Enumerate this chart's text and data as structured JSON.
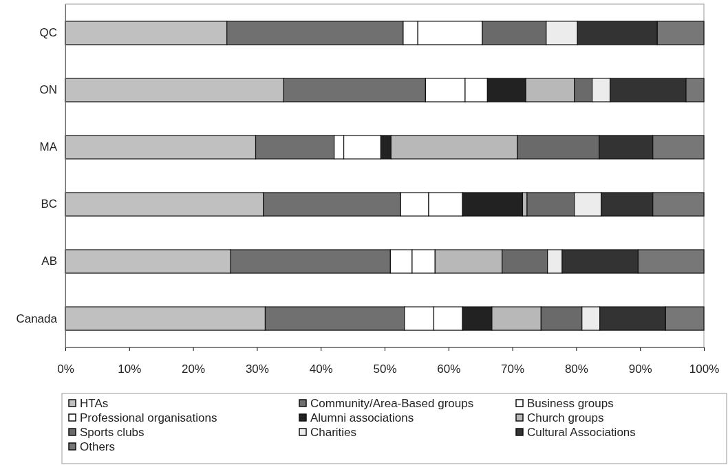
{
  "chart_data": {
    "type": "bar",
    "orientation": "horizontal",
    "stacked": true,
    "legend": "bottom",
    "grid": false,
    "categories": [
      "QC",
      "ON",
      "MA",
      "BC",
      "AB",
      "Canada"
    ],
    "xlim": [
      0,
      100
    ],
    "xticks": [
      {
        "value": 0,
        "label": "0%"
      },
      {
        "value": 10,
        "label": "10%"
      },
      {
        "value": 20,
        "label": "20%"
      },
      {
        "value": 30,
        "label": "30%"
      },
      {
        "value": 40,
        "label": "40%"
      },
      {
        "value": 50,
        "label": "50%"
      },
      {
        "value": 60,
        "label": "60%"
      },
      {
        "value": 70,
        "label": "70%"
      },
      {
        "value": 80,
        "label": "80%"
      },
      {
        "value": 90,
        "label": "90%"
      },
      {
        "value": 100,
        "label": "100%"
      }
    ],
    "series": [
      {
        "name": "HTAs",
        "color": "#c0c0c0",
        "values": [
          25.3,
          34.2,
          29.8,
          31.0,
          25.9,
          31.3
        ]
      },
      {
        "name": "Community/Area-Based groups",
        "color": "#707070",
        "values": [
          27.6,
          22.2,
          12.3,
          21.5,
          25.0,
          21.8
        ]
      },
      {
        "name": "Business groups",
        "color": "#ffffff",
        "values": [
          2.3,
          6.2,
          1.5,
          4.4,
          3.4,
          4.6
        ]
      },
      {
        "name": "Professional organisations",
        "color": "#ffffff",
        "values": [
          10.1,
          3.5,
          5.8,
          5.3,
          3.6,
          4.5
        ]
      },
      {
        "name": "Alumni associations",
        "color": "#222222",
        "values": [
          0,
          6.0,
          1.6,
          9.4,
          0,
          4.6
        ]
      },
      {
        "name": "Church groups",
        "color": "#b8b8b8",
        "values": [
          0,
          7.6,
          19.8,
          0.7,
          10.5,
          7.7
        ]
      },
      {
        "name": "Sports clubs",
        "color": "#6a6a6a",
        "values": [
          10.0,
          2.8,
          12.8,
          7.4,
          7.1,
          6.4
        ]
      },
      {
        "name": "Charities",
        "color": "#ececec",
        "values": [
          4.9,
          2.8,
          0,
          4.2,
          2.3,
          2.8
        ]
      },
      {
        "name": "Cultural Associations",
        "color": "#333333",
        "values": [
          12.5,
          11.9,
          8.4,
          8.1,
          11.9,
          10.3
        ]
      },
      {
        "name": "Others",
        "color": "#777777",
        "values": [
          7.3,
          2.8,
          8.0,
          8.0,
          10.3,
          6.0
        ]
      }
    ]
  }
}
